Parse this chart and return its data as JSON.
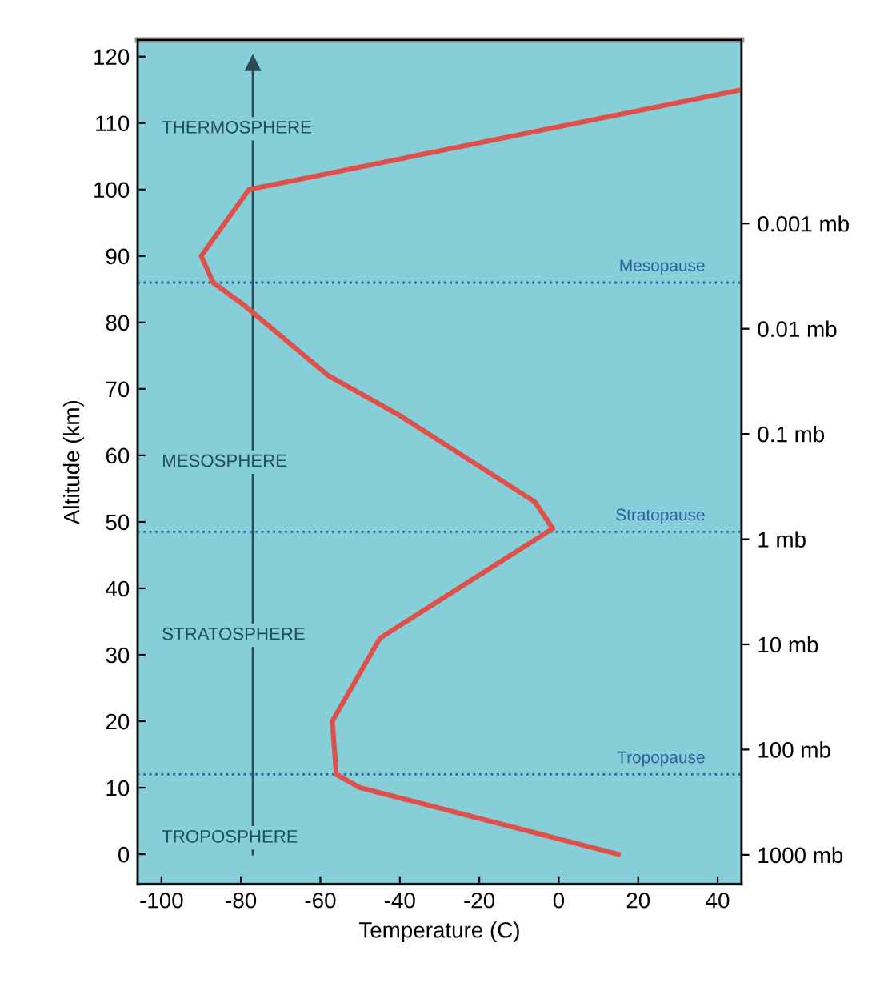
{
  "chart_data": {
    "type": "line",
    "xlabel": "Temperature (C)",
    "ylabel": "Altitude (km)",
    "xlim": [
      -106,
      46
    ],
    "ylim": [
      -4.5,
      122.5
    ],
    "xticks": [
      -100,
      -80,
      -60,
      -40,
      -20,
      0,
      20,
      40
    ],
    "yticks": [
      0,
      10,
      20,
      30,
      40,
      50,
      60,
      70,
      80,
      90,
      100,
      110,
      120
    ],
    "log": "y2",
    "y2lim": [
      1900,
      1.8e-05
    ],
    "y2ticks": [
      {
        "value": 0.001,
        "label": "0.001 mb"
      },
      {
        "value": 0.01,
        "label": "0.01 mb"
      },
      {
        "value": 0.1,
        "label": "0.1 mb"
      },
      {
        "value": 1,
        "label": "1 mb"
      },
      {
        "value": 10,
        "label": "10 mb"
      },
      {
        "value": 100,
        "label": "100 mb"
      },
      {
        "value": 1000,
        "label": "1000 mb"
      }
    ],
    "series": [
      {
        "color": "#2a4a55",
        "x": [
          -77,
          -77
        ],
        "values": [
          0,
          119
        ],
        "marker": "triangle"
      },
      {
        "color": "#e0504a",
        "x": [
          15,
          -50,
          -56,
          -57,
          -45,
          -20,
          -1.5,
          -6,
          -40,
          -58,
          -79,
          -87,
          -90,
          -78,
          46
        ],
        "values": [
          0,
          10,
          12,
          20,
          32.5,
          42,
          49,
          53,
          66,
          72,
          82.5,
          86,
          90,
          100,
          115
        ]
      }
    ],
    "ref_lines": [
      {
        "axis": "y",
        "value": 86,
        "label": "Mesopause",
        "color": "#2f5f9e",
        "line_style": "dotted"
      },
      {
        "axis": "y",
        "value": 48.5,
        "label": "Stratopause",
        "color": "#2f5f9e",
        "line_style": "dotted"
      },
      {
        "axis": "y",
        "value": 12,
        "label": "Tropopause",
        "color": "#2f5f9e",
        "line_style": "dotted"
      }
    ],
    "annotations": [
      "THERMOSPHERE",
      "MESOSPHERE",
      "STRATOSPHERE",
      "TROPOSPHERE"
    ],
    "marker": "none",
    "line_style": "solid",
    "grid": false,
    "legend": false
  }
}
